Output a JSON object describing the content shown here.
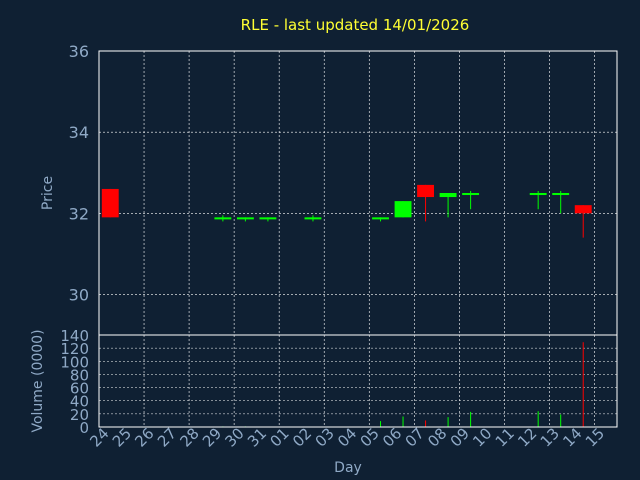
{
  "chart_data": [
    {
      "type": "candlestick",
      "title": "RLE - last updated 14/01/2026",
      "xlabel": "Day",
      "ylabel": "Price",
      "ylim": [
        29,
        36
      ],
      "yticks": [
        "30",
        "32",
        "34",
        "36"
      ],
      "grid": true,
      "up_color": "#00ff00",
      "down_color": "#ff0000",
      "categories": [
        "24",
        "25",
        "26",
        "27",
        "28",
        "29",
        "30",
        "31",
        "01",
        "02",
        "03",
        "04",
        "05",
        "06",
        "07",
        "08",
        "09",
        "10",
        "11",
        "12",
        "13",
        "14",
        "15"
      ],
      "candles": [
        {
          "day": "24",
          "open": 32.6,
          "high": 32.6,
          "low": 31.9,
          "close": 31.9
        },
        {
          "day": "29",
          "open": 31.85,
          "high": 31.95,
          "low": 31.8,
          "close": 31.9
        },
        {
          "day": "30",
          "open": 31.85,
          "high": 31.9,
          "low": 31.8,
          "close": 31.9
        },
        {
          "day": "31",
          "open": 31.85,
          "high": 31.9,
          "low": 31.8,
          "close": 31.9
        },
        {
          "day": "02",
          "open": 31.85,
          "high": 31.95,
          "low": 31.8,
          "close": 31.9
        },
        {
          "day": "05",
          "open": 31.85,
          "high": 31.9,
          "low": 31.8,
          "close": 31.9
        },
        {
          "day": "06",
          "open": 31.9,
          "high": 32.3,
          "low": 31.9,
          "close": 32.3
        },
        {
          "day": "07",
          "open": 32.7,
          "high": 32.7,
          "low": 31.8,
          "close": 32.4
        },
        {
          "day": "08",
          "open": 32.4,
          "high": 32.5,
          "low": 31.9,
          "close": 32.5
        },
        {
          "day": "09",
          "open": 32.45,
          "high": 32.55,
          "low": 32.1,
          "close": 32.5
        },
        {
          "day": "12",
          "open": 32.45,
          "high": 32.55,
          "low": 32.1,
          "close": 32.5
        },
        {
          "day": "13",
          "open": 32.45,
          "high": 32.55,
          "low": 32.0,
          "close": 32.5
        },
        {
          "day": "14",
          "open": 32.2,
          "high": 32.2,
          "low": 31.4,
          "close": 32.0
        }
      ]
    },
    {
      "type": "bar",
      "xlabel": "Day",
      "ylabel": "Volume (0000)",
      "ylim": [
        0,
        140
      ],
      "yticks": [
        "0",
        "20",
        "40",
        "60",
        "80",
        "100",
        "120",
        "140"
      ],
      "categories": [
        "24",
        "25",
        "26",
        "27",
        "28",
        "29",
        "30",
        "31",
        "01",
        "02",
        "03",
        "04",
        "05",
        "06",
        "07",
        "08",
        "09",
        "10",
        "11",
        "12",
        "13",
        "14",
        "15"
      ],
      "bars": [
        {
          "day": "29",
          "value": 1,
          "direction": "up"
        },
        {
          "day": "30",
          "value": 1,
          "direction": "up"
        },
        {
          "day": "05",
          "value": 9,
          "direction": "up"
        },
        {
          "day": "06",
          "value": 16,
          "direction": "up"
        },
        {
          "day": "07",
          "value": 10,
          "direction": "down"
        },
        {
          "day": "08",
          "value": 15,
          "direction": "up"
        },
        {
          "day": "09",
          "value": 23,
          "direction": "up"
        },
        {
          "day": "12",
          "value": 24,
          "direction": "up"
        },
        {
          "day": "13",
          "value": 19,
          "direction": "up"
        },
        {
          "day": "14",
          "value": 129,
          "direction": "down"
        }
      ]
    }
  ],
  "colors": {
    "background": "#0f2033",
    "plot_border": "#ffffff",
    "grid": "#ffffff",
    "title": "#ffff33",
    "axis_text": "#8fa9c6"
  }
}
